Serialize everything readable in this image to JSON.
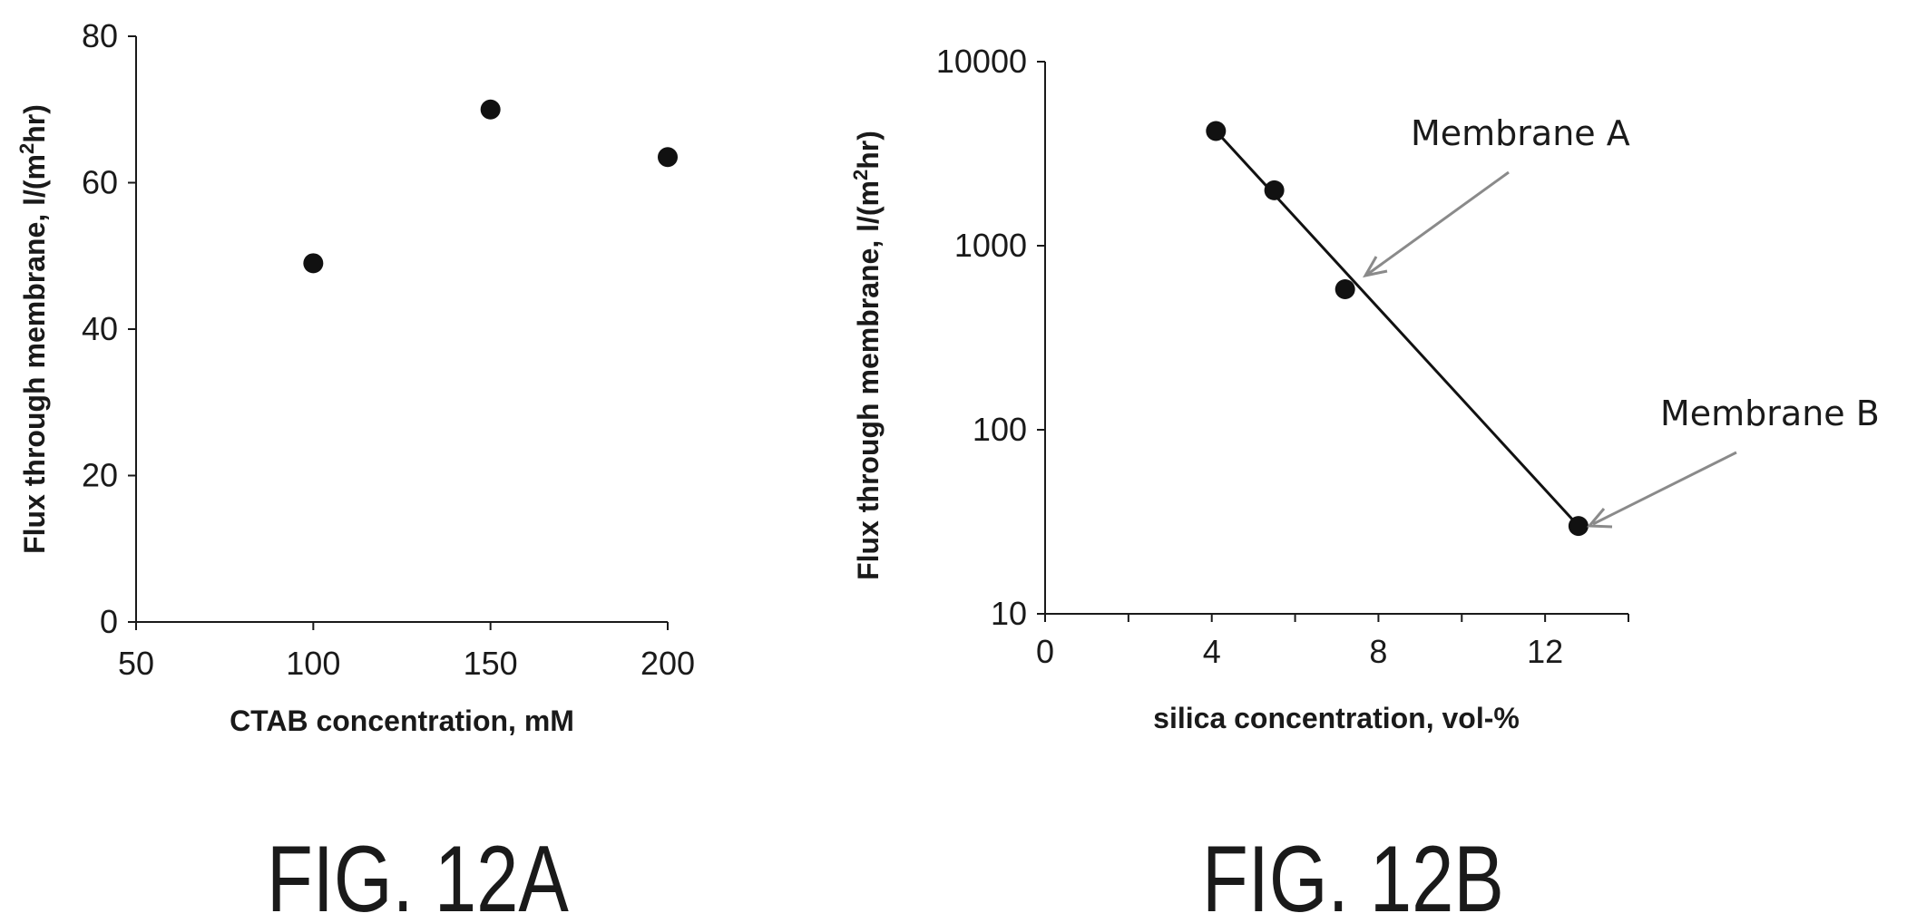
{
  "chart_data": [
    {
      "type": "scatter",
      "title": "",
      "xlabel": "CTAB concentration, mM",
      "ylabel_main": "Flux through membrane, l/(m",
      "ylabel_sup": "2",
      "ylabel_end": "hr)",
      "xlim": [
        50,
        200
      ],
      "ylim": [
        0,
        80
      ],
      "x_ticks": [
        50,
        100,
        150,
        200
      ],
      "y_ticks": [
        0,
        20,
        40,
        60,
        80
      ],
      "grid": false,
      "legend": "none",
      "series": [
        {
          "x": [
            100,
            150,
            200
          ],
          "y": [
            49,
            70,
            63.5
          ]
        }
      ],
      "caption": "FIG. 12A"
    },
    {
      "type": "scatter",
      "title": "",
      "xlabel": "silica concentration, vol-%",
      "ylabel_main": "Flux through membrane, l/(m",
      "ylabel_sup": "2",
      "ylabel_end": "hr)",
      "xlim": [
        0,
        14
      ],
      "ylim": [
        10,
        10000
      ],
      "yscale": "log",
      "x_ticks": [
        0,
        4,
        8,
        12
      ],
      "y_ticks": [
        10,
        100,
        1000,
        10000
      ],
      "grid": false,
      "legend": "none",
      "series": [
        {
          "x": [
            4.1,
            5.5,
            7.2,
            12.8
          ],
          "y": [
            4200,
            2000,
            580,
            30
          ]
        }
      ],
      "trend_line": {
        "x": [
          4.1,
          12.8
        ],
        "y": [
          4200,
          30
        ]
      },
      "annotations": [
        {
          "text": "Membrane A",
          "points_to": {
            "x": 7.6,
            "y": 680
          }
        },
        {
          "text": "Membrane B",
          "points_to": {
            "x": 13.0,
            "y": 30
          }
        }
      ],
      "caption": "FIG. 12B"
    }
  ]
}
